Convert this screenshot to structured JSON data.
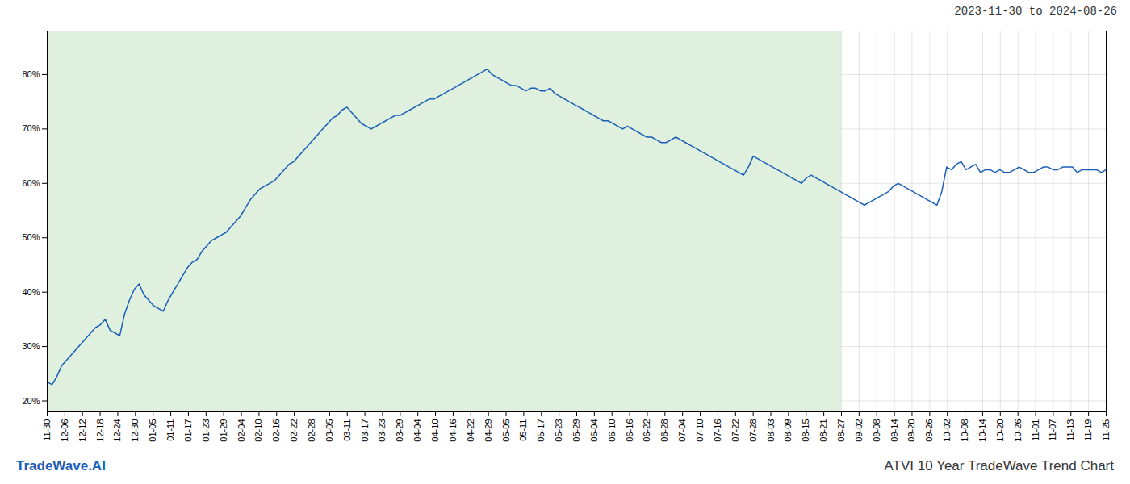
{
  "chart_data": {
    "type": "line",
    "title": "ATVI 10 Year TradeWave Trend Chart",
    "subtitle": "2023-11-30 to 2024-08-26",
    "annotations": [
      {
        "text": "TradeWave.AI",
        "color": "#1a5eb8"
      }
    ],
    "color": "#1a5eb8",
    "xticks": [
      "11-30",
      "12-06",
      "12-12",
      "12-18",
      "12-24",
      "12-30",
      "01-05",
      "01-11",
      "01-17",
      "01-23",
      "01-29",
      "02-04",
      "02-10",
      "02-16",
      "02-22",
      "02-28",
      "03-05",
      "03-11",
      "03-17",
      "03-23",
      "03-29",
      "04-04",
      "04-10",
      "04-16",
      "04-22",
      "04-29",
      "05-05",
      "05-11",
      "05-17",
      "05-23",
      "05-29",
      "06-04",
      "06-10",
      "06-16",
      "06-22",
      "06-28",
      "07-04",
      "07-10",
      "07-16",
      "07-22",
      "07-28",
      "08-03",
      "08-09",
      "08-15",
      "08-21",
      "08-27",
      "09-02",
      "09-08",
      "09-14",
      "09-20",
      "09-26",
      "10-02",
      "10-08",
      "10-14",
      "10-20",
      "10-26",
      "11-01",
      "11-07",
      "11-13",
      "11-19",
      "11-25"
    ],
    "span": {
      "from": "11-30",
      "to": "08-27",
      "color": "#dff0de"
    },
    "values": [
      23.5,
      23.0,
      24.5,
      26.5,
      27.5,
      28.5,
      29.5,
      30.5,
      31.5,
      32.5,
      33.5,
      34.0,
      35.0,
      33.0,
      32.5,
      32.0,
      36.0,
      38.5,
      40.5,
      41.5,
      39.5,
      38.5,
      37.5,
      37.0,
      36.5,
      38.5,
      40.0,
      41.5,
      43.0,
      44.5,
      45.5,
      46.0,
      47.5,
      48.5,
      49.5,
      50.0,
      50.5,
      51.0,
      52.0,
      53.0,
      54.0,
      55.5,
      57.0,
      58.0,
      59.0,
      59.5,
      60.0,
      60.5,
      61.5,
      62.5,
      63.5,
      64.0,
      65.0,
      66.0,
      67.0,
      68.0,
      69.0,
      70.0,
      71.0,
      72.0,
      72.5,
      73.5,
      74.0,
      73.0,
      72.0,
      71.0,
      70.5,
      70.0,
      70.5,
      71.0,
      71.5,
      72.0,
      72.5,
      72.5,
      73.0,
      73.5,
      74.0,
      74.5,
      75.0,
      75.5,
      75.5,
      76.0,
      76.5,
      77.0,
      77.5,
      78.0,
      78.5,
      79.0,
      79.5,
      80.0,
      80.5,
      81.0,
      80.0,
      79.5,
      79.0,
      78.5,
      78.0,
      78.0,
      77.5,
      77.0,
      77.5,
      77.5,
      77.0,
      77.0,
      77.5,
      76.5,
      76.0,
      75.5,
      75.0,
      74.5,
      74.0,
      73.5,
      73.0,
      72.5,
      72.0,
      71.5,
      71.5,
      71.0,
      70.5,
      70.0,
      70.5,
      70.0,
      69.5,
      69.0,
      68.5,
      68.5,
      68.0,
      67.5,
      67.5,
      68.0,
      68.5,
      68.0,
      67.5,
      67.0,
      66.5,
      66.0,
      65.5,
      65.0,
      64.5,
      64.0,
      63.5,
      63.0,
      62.5,
      62.0,
      61.5,
      63.0,
      65.0,
      64.5,
      64.0,
      63.5,
      63.0,
      62.5,
      62.0,
      61.5,
      61.0,
      60.5,
      60.0,
      61.0,
      61.5,
      61.0,
      60.5,
      60.0,
      59.5,
      59.0,
      58.5,
      58.0,
      57.5,
      57.0,
      56.5,
      56.0,
      56.5,
      57.0,
      57.5,
      58.0,
      58.5,
      59.5,
      60.0,
      59.5,
      59.0,
      58.5,
      58.0,
      57.5,
      57.0,
      56.5,
      56.0,
      58.5,
      63.0,
      62.5,
      63.5,
      64.0,
      62.5,
      63.0,
      63.5,
      62.0,
      62.5,
      62.5,
      62.0,
      62.5,
      62.0,
      62.0,
      62.5,
      63.0,
      62.5,
      62.0,
      62.0,
      62.5,
      63.0,
      63.0,
      62.5,
      62.5,
      63.0,
      63.0,
      63.0,
      62.0,
      62.5,
      62.5,
      62.5,
      62.5,
      62.0,
      62.5
    ],
    "ylim": [
      18,
      88
    ],
    "yticks": [
      {
        "value": 20,
        "label": "20%"
      },
      {
        "value": 30,
        "label": "30%"
      },
      {
        "value": 40,
        "label": "40%"
      },
      {
        "value": 50,
        "label": "50%"
      },
      {
        "value": 60,
        "label": "60%"
      },
      {
        "value": 70,
        "label": "70%"
      },
      {
        "value": 80,
        "label": "80%"
      }
    ],
    "grid": true
  }
}
